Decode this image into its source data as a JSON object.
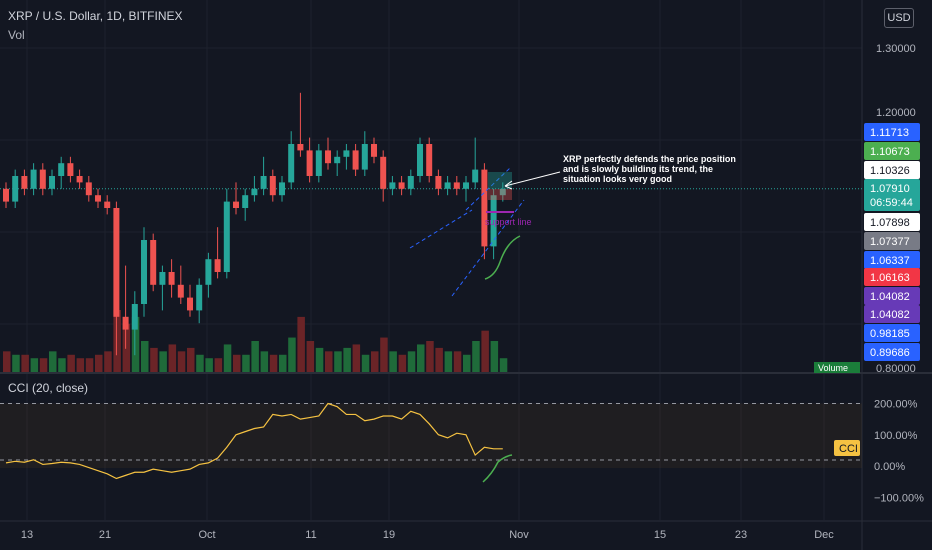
{
  "header": {
    "title": "XRP / U.S. Dollar, 1D, BITFINEX",
    "volume_label": "Vol",
    "currency_button": "USD"
  },
  "annotations": {
    "text": "XRP perfectly defends the price position and is slowly building its trend, the situation looks very good",
    "support_label": "support line",
    "volume_tag": "Volume"
  },
  "price_axis": {
    "ticks": [
      "1.30000",
      "1.20000",
      "0.80000"
    ],
    "tags": [
      {
        "label": "1.11713",
        "color": "#2962ff"
      },
      {
        "label": "1.10673",
        "color": "#4caf50"
      },
      {
        "label": "1.10326",
        "color": "#ffffff",
        "text_color": "#131722"
      },
      {
        "label": "1.07910",
        "color": "#26a69a",
        "sub": "06:59:44"
      },
      {
        "label": "1.07898",
        "color": "#ffffff",
        "text_color": "#131722"
      },
      {
        "label": "1.07377",
        "color": "#787b86"
      },
      {
        "label": "1.06337",
        "color": "#2962ff"
      },
      {
        "label": "1.06163",
        "color": "#f23645"
      },
      {
        "label": "1.04082",
        "color": "#673ab7"
      },
      {
        "label": "1.04082",
        "color": "#673ab7"
      },
      {
        "label": "0.98185",
        "color": "#2962ff"
      },
      {
        "label": "0.89686",
        "color": "#2962ff"
      }
    ]
  },
  "cci": {
    "label": "CCI (20, close)",
    "tag": "CCI",
    "ticks": [
      "200.00%",
      "100.00%",
      "0.00%",
      "−100.00%"
    ]
  },
  "x_axis": {
    "ticks": [
      "13",
      "21",
      "Oct",
      "11",
      "19",
      "Nov",
      "15",
      "23",
      "Dec"
    ]
  },
  "colors": {
    "up": "#26a69a",
    "down": "#ef5350",
    "vol_up": "#1f6b3a",
    "vol_down": "#6b2427",
    "cci_line": "#f5c242",
    "background": "#131722"
  },
  "chart_data": [
    {
      "type": "candlestick",
      "title": "XRP / U.S. Dollar, 1D, BITFINEX",
      "ylim": [
        0.8,
        1.33
      ],
      "ohlc": [
        [
          1.08,
          1.09,
          1.05,
          1.06
        ],
        [
          1.06,
          1.11,
          1.05,
          1.1
        ],
        [
          1.1,
          1.11,
          1.07,
          1.08
        ],
        [
          1.08,
          1.12,
          1.07,
          1.11
        ],
        [
          1.11,
          1.12,
          1.07,
          1.08
        ],
        [
          1.08,
          1.11,
          1.07,
          1.1
        ],
        [
          1.1,
          1.13,
          1.08,
          1.12
        ],
        [
          1.12,
          1.13,
          1.09,
          1.1
        ],
        [
          1.1,
          1.11,
          1.08,
          1.09
        ],
        [
          1.09,
          1.1,
          1.06,
          1.07
        ],
        [
          1.07,
          1.08,
          1.05,
          1.06
        ],
        [
          1.06,
          1.07,
          1.04,
          1.05
        ],
        [
          1.05,
          1.06,
          0.82,
          0.88
        ],
        [
          0.88,
          0.96,
          0.83,
          0.86
        ],
        [
          0.86,
          0.92,
          0.82,
          0.9
        ],
        [
          0.9,
          1.02,
          0.88,
          1.0
        ],
        [
          1.0,
          1.01,
          0.92,
          0.93
        ],
        [
          0.93,
          0.96,
          0.89,
          0.95
        ],
        [
          0.95,
          0.97,
          0.91,
          0.93
        ],
        [
          0.93,
          0.96,
          0.9,
          0.91
        ],
        [
          0.91,
          0.93,
          0.88,
          0.89
        ],
        [
          0.89,
          0.94,
          0.87,
          0.93
        ],
        [
          0.93,
          0.98,
          0.91,
          0.97
        ],
        [
          0.97,
          1.02,
          0.94,
          0.95
        ],
        [
          0.95,
          1.08,
          0.94,
          1.06
        ],
        [
          1.06,
          1.09,
          1.04,
          1.05
        ],
        [
          1.05,
          1.08,
          1.03,
          1.07
        ],
        [
          1.07,
          1.1,
          1.06,
          1.08
        ],
        [
          1.08,
          1.13,
          1.07,
          1.1
        ],
        [
          1.1,
          1.11,
          1.06,
          1.07
        ],
        [
          1.07,
          1.1,
          1.06,
          1.09
        ],
        [
          1.09,
          1.17,
          1.08,
          1.15
        ],
        [
          1.15,
          1.23,
          1.13,
          1.14
        ],
        [
          1.14,
          1.16,
          1.09,
          1.1
        ],
        [
          1.1,
          1.15,
          1.09,
          1.14
        ],
        [
          1.14,
          1.16,
          1.11,
          1.12
        ],
        [
          1.12,
          1.14,
          1.1,
          1.13
        ],
        [
          1.13,
          1.15,
          1.11,
          1.14
        ],
        [
          1.14,
          1.15,
          1.1,
          1.11
        ],
        [
          1.11,
          1.17,
          1.1,
          1.15
        ],
        [
          1.15,
          1.16,
          1.12,
          1.13
        ],
        [
          1.13,
          1.14,
          1.06,
          1.08
        ],
        [
          1.08,
          1.1,
          1.07,
          1.09
        ],
        [
          1.09,
          1.1,
          1.07,
          1.08
        ],
        [
          1.08,
          1.11,
          1.07,
          1.1
        ],
        [
          1.1,
          1.16,
          1.09,
          1.15
        ],
        [
          1.15,
          1.16,
          1.09,
          1.1
        ],
        [
          1.1,
          1.11,
          1.07,
          1.08
        ],
        [
          1.08,
          1.1,
          1.07,
          1.09
        ],
        [
          1.09,
          1.1,
          1.07,
          1.08
        ],
        [
          1.08,
          1.1,
          1.06,
          1.09
        ],
        [
          1.09,
          1.16,
          1.08,
          1.11
        ],
        [
          1.11,
          1.12,
          0.97,
          0.99
        ],
        [
          0.99,
          1.08,
          0.97,
          1.07
        ],
        [
          1.07,
          1.09,
          1.06,
          1.08
        ]
      ],
      "volume": [
        6,
        5,
        5,
        4,
        4,
        6,
        4,
        5,
        4,
        4,
        5,
        6,
        18,
        14,
        16,
        9,
        7,
        6,
        8,
        6,
        7,
        5,
        4,
        4,
        8,
        5,
        5,
        9,
        6,
        5,
        5,
        10,
        16,
        9,
        7,
        6,
        6,
        7,
        8,
        5,
        6,
        10,
        6,
        5,
        6,
        8,
        9,
        7,
        6,
        6,
        5,
        9,
        12,
        9,
        4
      ]
    },
    {
      "type": "line",
      "title": "CCI (20, close)",
      "ylim": [
        -120,
        220
      ],
      "ticks": [
        200,
        100,
        0,
        -100
      ],
      "values": [
        10,
        15,
        12,
        20,
        5,
        8,
        12,
        10,
        5,
        -5,
        -15,
        -25,
        -40,
        -30,
        -20,
        -20,
        -10,
        -15,
        -20,
        -15,
        -10,
        5,
        10,
        25,
        60,
        100,
        110,
        120,
        125,
        165,
        160,
        165,
        150,
        155,
        160,
        200,
        190,
        165,
        165,
        145,
        150,
        160,
        160,
        150,
        175,
        165,
        135,
        100,
        90,
        105,
        100,
        35,
        60,
        55,
        55
      ]
    }
  ]
}
